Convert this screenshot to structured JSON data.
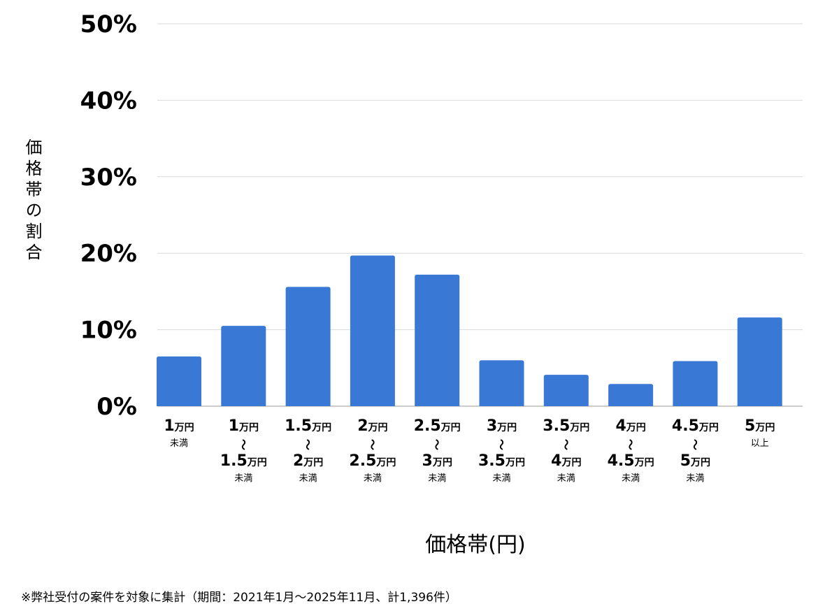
{
  "chart_data": {
    "type": "bar",
    "categories": [
      [
        "1万円",
        "未満"
      ],
      [
        "1万円",
        "〜",
        "1.5万円",
        "未満"
      ],
      [
        "1.5万円",
        "〜",
        "2万円",
        "未満"
      ],
      [
        "2万円",
        "〜",
        "2.5万円",
        "未満"
      ],
      [
        "2.5万円",
        "〜",
        "3万円",
        "未満"
      ],
      [
        "3万円",
        "〜",
        "3.5万円",
        "未満"
      ],
      [
        "3.5万円",
        "〜",
        "4万円",
        "未満"
      ],
      [
        "4万円",
        "〜",
        "4.5万円",
        "未満"
      ],
      [
        "4.5万円",
        "〜",
        "5万円",
        "未満"
      ],
      [
        "5万円",
        "以上"
      ]
    ],
    "values": [
      6.5,
      10.5,
      15.6,
      19.7,
      17.2,
      6.0,
      4.1,
      2.9,
      5.9,
      11.6
    ],
    "ylim": [
      0,
      50
    ],
    "yticks": [
      "0%",
      "10%",
      "20%",
      "30%",
      "40%",
      "50%"
    ],
    "ylabel": "価格帯の割合",
    "xlabel": "価格帯(円)",
    "grid": true,
    "bar_color": "#3a78d6"
  },
  "footnote": "※弊社受付の案件を対象に集計（期間：2021年1月〜2025年11月、計1,396件）"
}
